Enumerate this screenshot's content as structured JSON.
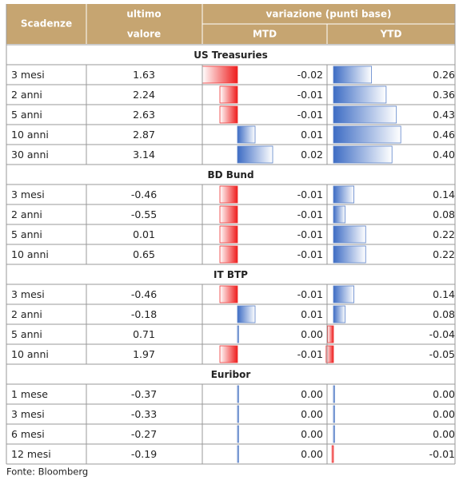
{
  "header": {
    "col1": "Scadenze",
    "col2_line1": "ultimo",
    "col2_line2": "valore",
    "group": "variazione (punti base)",
    "mtd": "MTD",
    "ytd": "YTD"
  },
  "sections": [
    {
      "title": "US Treasuries",
      "rows": [
        [
          "3 mesi",
          "1.63",
          "-0.02",
          "0.26"
        ],
        [
          "2 anni",
          "2.24",
          "-0.01",
          "0.36"
        ],
        [
          "5 anni",
          "2.63",
          "-0.01",
          "0.43"
        ],
        [
          "10 anni",
          "2.87",
          "0.01",
          "0.46"
        ],
        [
          "30 anni",
          "3.14",
          "0.02",
          "0.40"
        ]
      ]
    },
    {
      "title": "BD Bund",
      "rows": [
        [
          "3 mesi",
          "-0.46",
          "-0.01",
          "0.14"
        ],
        [
          "2 anni",
          "-0.55",
          "-0.01",
          "0.08"
        ],
        [
          "5 anni",
          "0.01",
          "-0.01",
          "0.22"
        ],
        [
          "10 anni",
          "0.65",
          "-0.01",
          "0.22"
        ]
      ]
    },
    {
      "title": "IT BTP",
      "rows": [
        [
          "3 mesi",
          "-0.46",
          "-0.01",
          "0.14"
        ],
        [
          "2 anni",
          "-0.18",
          "0.01",
          "0.08"
        ],
        [
          "5 anni",
          "0.71",
          "0.00",
          "-0.04"
        ],
        [
          "10 anni",
          "1.97",
          "-0.01",
          "-0.05"
        ]
      ]
    },
    {
      "title": "Euribor",
      "rows": [
        [
          "1 mese",
          "-0.37",
          "0.00",
          "0.00"
        ],
        [
          "3 mesi",
          "-0.33",
          "0.00",
          "0.00"
        ],
        [
          "6 mesi",
          "-0.27",
          "0.00",
          "0.00"
        ],
        [
          "12 mesi",
          "-0.19",
          "0.00",
          "-0.01"
        ]
      ]
    }
  ],
  "source": "Fonte: Bloomberg"
}
